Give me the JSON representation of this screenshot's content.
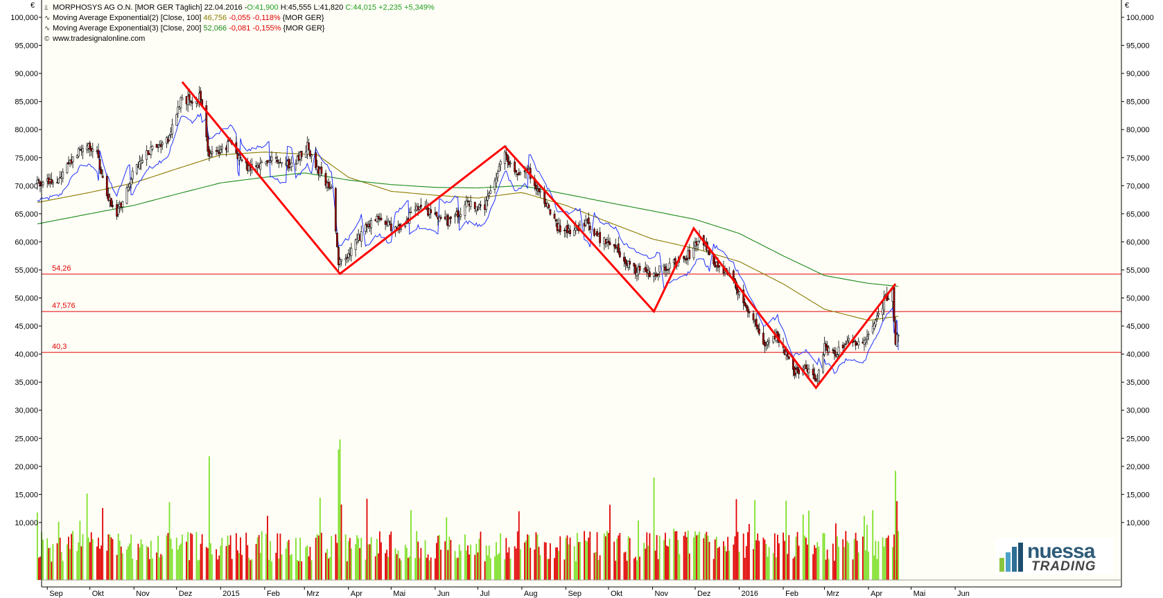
{
  "header": {
    "title_line": "MORPHOSYS AG O.N. [MOR GER  Täglich] 22.04.2016 - ",
    "ohlc": {
      "open": "O:41,900",
      "high": "H:45,555",
      "low": "L:41,820",
      "close": "C:44,015",
      "change": "+2,235",
      "change_pct": "+5,349%"
    },
    "ma100": {
      "label": "Moving Average Exponential(2) [Close, 100]",
      "value": "46,756",
      "change": "-0,055",
      "change_pct": "-0,118%",
      "symbol": "{MOR GER}"
    },
    "ma200": {
      "label": "Moving Average Exponential(3) [Close, 200]",
      "value": "52,066",
      "change": "-0,081",
      "change_pct": "-0,155%",
      "symbol": "{MOR GER}"
    },
    "source": "www.tradesignalonline.com"
  },
  "currency_left": "€",
  "currency_right": "€",
  "logo": {
    "line1": "nuessa",
    "line2": "TRADING"
  },
  "colors": {
    "up_candle": "#ffffff",
    "down_candle": "#b00000",
    "ma100": "#8a7a00",
    "ma200": "#1a8a1a",
    "band": "#2030ff",
    "zigzag": "#ff0000",
    "hline": "#e00000",
    "vol_up": "#7ee02a",
    "vol_down": "#e00000"
  },
  "chart_data": {
    "type": "candlestick",
    "instrument": "MORPHOSYS AG O.N. [MOR GER  Täglich]",
    "y_ticks": [
      "100,000",
      "95,000",
      "90,000",
      "85,000",
      "80,000",
      "75,000",
      "70,000",
      "65,000",
      "60,000",
      "55,000",
      "50,000",
      "45,000",
      "40,000",
      "35,000",
      "30,000",
      "25,000",
      "20,000",
      "15,000",
      "10,000"
    ],
    "price_ylim": [
      30,
      100
    ],
    "volume_ylim": [
      0,
      25000
    ],
    "x_labels": [
      "Sep",
      "Okt",
      "Nov",
      "Dez",
      "2015",
      "Feb",
      "Mrz",
      "Apr",
      "Mai",
      "Jun",
      "Jul",
      "Aug",
      "Sep",
      "Okt",
      "Nov",
      "Dez",
      "2016",
      "Feb",
      "Mrz",
      "Apr",
      "Mai",
      "Jun"
    ],
    "hlines": [
      {
        "label": "54,26",
        "value": 54.26
      },
      {
        "label": "47,576",
        "value": 47.576
      },
      {
        "label": "40,3",
        "value": 40.3
      }
    ],
    "zigzag": [
      {
        "date": "2014-12-05",
        "value": 88.5
      },
      {
        "date": "2015-03-26",
        "value": 54.3
      },
      {
        "date": "2015-07-20",
        "value": 77.0
      },
      {
        "date": "2015-11-02",
        "value": 47.6
      },
      {
        "date": "2015-11-30",
        "value": 62.4
      },
      {
        "date": "2016-02-24",
        "value": 34.0
      },
      {
        "date": "2016-04-20",
        "value": 52.5
      }
    ],
    "price_anchors": [
      [
        "2014-08-25",
        70.5
      ],
      [
        "2014-09-10",
        71.5
      ],
      [
        "2014-09-25",
        77.0
      ],
      [
        "2014-10-05",
        76.5
      ],
      [
        "2014-10-12",
        69.0
      ],
      [
        "2014-10-20",
        65.0
      ],
      [
        "2014-10-30",
        71.5
      ],
      [
        "2014-11-10",
        76.0
      ],
      [
        "2014-11-25",
        78.5
      ],
      [
        "2014-12-05",
        86.0
      ],
      [
        "2014-12-12",
        84.5
      ],
      [
        "2014-12-18",
        86.0
      ],
      [
        "2014-12-24",
        75.0
      ],
      [
        "2015-01-08",
        77.5
      ],
      [
        "2015-01-20",
        73.0
      ],
      [
        "2015-02-05",
        74.5
      ],
      [
        "2015-02-20",
        73.5
      ],
      [
        "2015-03-03",
        77.0
      ],
      [
        "2015-03-10",
        73.0
      ],
      [
        "2015-03-20",
        69.0
      ],
      [
        "2015-03-25",
        56.0
      ],
      [
        "2015-04-01",
        57.5
      ],
      [
        "2015-04-10",
        61.5
      ],
      [
        "2015-04-22",
        64.5
      ],
      [
        "2015-05-05",
        62.0
      ],
      [
        "2015-05-20",
        66.0
      ],
      [
        "2015-06-01",
        65.0
      ],
      [
        "2015-06-10",
        63.5
      ],
      [
        "2015-06-25",
        67.0
      ],
      [
        "2015-07-05",
        65.5
      ],
      [
        "2015-07-12",
        70.0
      ],
      [
        "2015-07-20",
        76.0
      ],
      [
        "2015-07-28",
        72.0
      ],
      [
        "2015-08-04",
        73.5
      ],
      [
        "2015-08-12",
        69.5
      ],
      [
        "2015-08-20",
        66.0
      ],
      [
        "2015-08-26",
        62.5
      ],
      [
        "2015-09-05",
        62.0
      ],
      [
        "2015-09-15",
        63.5
      ],
      [
        "2015-09-25",
        60.5
      ],
      [
        "2015-10-05",
        59.5
      ],
      [
        "2015-10-12",
        56.5
      ],
      [
        "2015-10-20",
        55.0
      ],
      [
        "2015-10-30",
        54.0
      ],
      [
        "2015-11-10",
        55.5
      ],
      [
        "2015-11-20",
        56.5
      ],
      [
        "2015-11-28",
        58.0
      ],
      [
        "2015-12-05",
        61.0
      ],
      [
        "2015-12-15",
        56.0
      ],
      [
        "2015-12-28",
        53.0
      ],
      [
        "2016-01-08",
        47.5
      ],
      [
        "2016-01-18",
        42.0
      ],
      [
        "2016-01-28",
        43.5
      ],
      [
        "2016-02-08",
        36.5
      ],
      [
        "2016-02-18",
        37.5
      ],
      [
        "2016-02-25",
        35.0
      ],
      [
        "2016-03-01",
        42.0
      ],
      [
        "2016-03-08",
        40.0
      ],
      [
        "2016-03-18",
        42.5
      ],
      [
        "2016-03-28",
        41.5
      ],
      [
        "2016-04-05",
        45.5
      ],
      [
        "2016-04-12",
        49.5
      ],
      [
        "2016-04-18",
        51.5
      ],
      [
        "2016-04-20",
        41.8
      ],
      [
        "2016-04-22",
        44.0
      ]
    ],
    "ma100_anchors": [
      [
        "2014-08-25",
        67.0
      ],
      [
        "2014-10-01",
        68.8
      ],
      [
        "2014-11-01",
        70.5
      ],
      [
        "2014-12-01",
        73.0
      ],
      [
        "2015-01-01",
        75.5
      ],
      [
        "2015-02-01",
        76.0
      ],
      [
        "2015-03-10",
        75.5
      ],
      [
        "2015-04-01",
        71.5
      ],
      [
        "2015-05-01",
        69.0
      ],
      [
        "2015-06-01",
        68.3
      ],
      [
        "2015-07-01",
        67.8
      ],
      [
        "2015-08-01",
        68.8
      ],
      [
        "2015-09-01",
        66.5
      ],
      [
        "2015-10-01",
        63.5
      ],
      [
        "2015-11-01",
        60.5
      ],
      [
        "2015-12-01",
        58.8
      ],
      [
        "2016-01-01",
        56.5
      ],
      [
        "2016-02-01",
        52.5
      ],
      [
        "2016-03-01",
        48.0
      ],
      [
        "2016-04-01",
        46.0
      ],
      [
        "2016-04-22",
        46.76
      ]
    ],
    "ma200_anchors": [
      [
        "2014-08-25",
        63.2
      ],
      [
        "2014-10-01",
        65.0
      ],
      [
        "2014-11-01",
        66.5
      ],
      [
        "2014-12-01",
        68.5
      ],
      [
        "2015-01-01",
        70.5
      ],
      [
        "2015-02-01",
        71.5
      ],
      [
        "2015-03-01",
        72.3
      ],
      [
        "2015-04-01",
        71.0
      ],
      [
        "2015-05-01",
        70.2
      ],
      [
        "2015-06-01",
        69.7
      ],
      [
        "2015-07-01",
        69.6
      ],
      [
        "2015-08-01",
        70.0
      ],
      [
        "2015-09-01",
        68.5
      ],
      [
        "2015-10-01",
        67.0
      ],
      [
        "2015-11-01",
        65.5
      ],
      [
        "2015-12-01",
        64.0
      ],
      [
        "2016-01-01",
        61.5
      ],
      [
        "2016-02-01",
        57.5
      ],
      [
        "2016-03-01",
        54.0
      ],
      [
        "2016-04-01",
        52.6
      ],
      [
        "2016-04-22",
        52.07
      ]
    ]
  }
}
